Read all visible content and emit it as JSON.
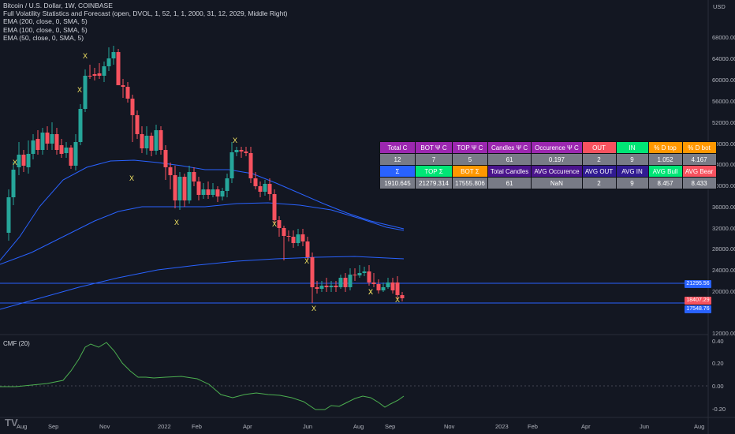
{
  "legend": {
    "symbol": "Bitcoin / U.S. Dollar, 1W, COINBASE",
    "indicators": [
      "Full Volatility Statistics and Forecast (open, DVOL, 1, 52, 1, 1, 2000, 31, 12, 2029, Middle Right)",
      "EMA (200, close, 0, SMA, 5)",
      "EMA (100, close, 0, SMA, 5)",
      "EMA (50, close, 0, SMA, 5)"
    ]
  },
  "price_axis": {
    "currency": "USD",
    "labels": [
      "68000.00",
      "64000.00",
      "60000.00",
      "56000.00",
      "52000.00",
      "48000.00",
      "44000.00",
      "40000.00",
      "36000.00",
      "32000.00",
      "28000.00",
      "24000.00",
      "20000.00",
      "12000.00"
    ],
    "tags": [
      {
        "text": "21295.56",
        "color": "#2962ff"
      },
      {
        "text": "18407.29",
        "color": "#f7525f"
      },
      {
        "text": "17548.76",
        "color": "#2962ff"
      }
    ]
  },
  "time_axis": {
    "labels": [
      "Aug",
      "Sep",
      "Nov",
      "2022",
      "Feb",
      "Apr",
      "Jun",
      "Aug",
      "Sep",
      "Nov",
      "2023",
      "Feb",
      "Apr",
      "Jun",
      "Aug"
    ]
  },
  "cmf": {
    "label": "CMF (20)",
    "axis_labels": [
      "0.40",
      "0.20",
      "0.00",
      "-0.20"
    ]
  },
  "stats_table": {
    "rows": [
      [
        {
          "text": "Total C",
          "bg": "#9c27b0",
          "fg": "#ffffff"
        },
        {
          "text": "BOT Ψ C",
          "bg": "#9c27b0",
          "fg": "#ffffff"
        },
        {
          "text": "TOP Ψ C",
          "bg": "#9c27b0",
          "fg": "#ffffff"
        },
        {
          "text": "Candles Ψ C",
          "bg": "#9c27b0",
          "fg": "#ffffff"
        },
        {
          "text": "Occurence Ψ C",
          "bg": "#9c27b0",
          "fg": "#ffffff"
        },
        {
          "text": "OUT",
          "bg": "#f7525f",
          "fg": "#ffffff"
        },
        {
          "text": "IN",
          "bg": "#00e676",
          "fg": "#ffffff"
        },
        {
          "text": "% D top",
          "bg": "#ff9800",
          "fg": "#ffffff"
        },
        {
          "text": "% D bot",
          "bg": "#ff9800",
          "fg": "#ffffff"
        }
      ],
      [
        {
          "text": "12",
          "bg": "#787b86",
          "fg": "#ffffff"
        },
        {
          "text": "7",
          "bg": "#787b86",
          "fg": "#ffffff"
        },
        {
          "text": "5",
          "bg": "#787b86",
          "fg": "#ffffff"
        },
        {
          "text": "61",
          "bg": "#787b86",
          "fg": "#ffffff"
        },
        {
          "text": "0.197",
          "bg": "#787b86",
          "fg": "#ffffff"
        },
        {
          "text": "2",
          "bg": "#787b86",
          "fg": "#ffffff"
        },
        {
          "text": "9",
          "bg": "#787b86",
          "fg": "#ffffff"
        },
        {
          "text": "1.052",
          "bg": "#787b86",
          "fg": "#ffffff"
        },
        {
          "text": "4.167",
          "bg": "#787b86",
          "fg": "#ffffff"
        }
      ],
      [
        {
          "text": "Σ",
          "bg": "#2962ff",
          "fg": "#ffffff"
        },
        {
          "text": "TOP Σ",
          "bg": "#00e676",
          "fg": "#ffffff"
        },
        {
          "text": "BOT Σ",
          "bg": "#ff9800",
          "fg": "#ffffff"
        },
        {
          "text": "Total Candles",
          "bg": "#4a148c",
          "fg": "#ffffff"
        },
        {
          "text": "AVG Occurence",
          "bg": "#4a148c",
          "fg": "#ffffff"
        },
        {
          "text": "AVG OUT",
          "bg": "#311b92",
          "fg": "#ffffff"
        },
        {
          "text": "AVG IN",
          "bg": "#311b92",
          "fg": "#ffffff"
        },
        {
          "text": "AVG Bull",
          "bg": "#00e676",
          "fg": "#ffffff"
        },
        {
          "text": "AVG Bear",
          "bg": "#f7525f",
          "fg": "#ffffff"
        }
      ],
      [
        {
          "text": "1910.645",
          "bg": "#787b86",
          "fg": "#ffffff"
        },
        {
          "text": "21279.314",
          "bg": "#787b86",
          "fg": "#ffffff"
        },
        {
          "text": "17555.806",
          "bg": "#787b86",
          "fg": "#ffffff"
        },
        {
          "text": "61",
          "bg": "#787b86",
          "fg": "#ffffff"
        },
        {
          "text": "NaN",
          "bg": "#787b86",
          "fg": "#ffffff"
        },
        {
          "text": "2",
          "bg": "#787b86",
          "fg": "#ffffff"
        },
        {
          "text": "9",
          "bg": "#787b86",
          "fg": "#ffffff"
        },
        {
          "text": "8.457",
          "bg": "#787b86",
          "fg": "#ffffff"
        },
        {
          "text": "8.433",
          "bg": "#787b86",
          "fg": "#ffffff"
        }
      ]
    ]
  },
  "marker_glyph": "X",
  "watermark": "TV",
  "colors": {
    "background": "#131722",
    "bull": "#26a69a",
    "bear": "#f7525f",
    "ema": "#2962ff",
    "marker": "#f5e663",
    "cmf": "#4caf50"
  }
}
